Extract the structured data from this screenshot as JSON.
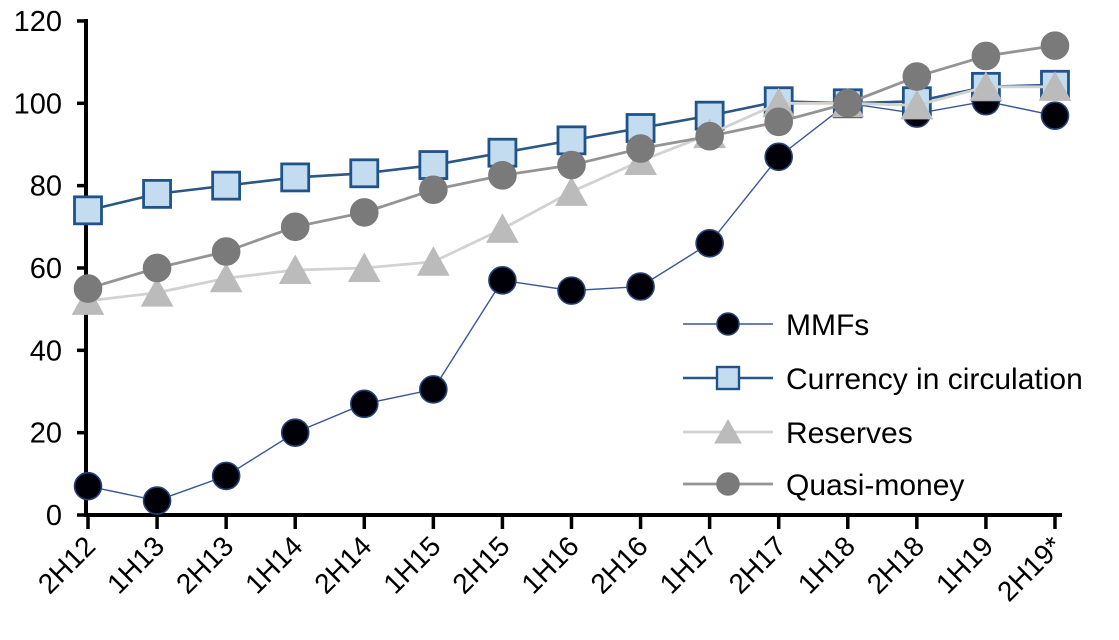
{
  "chart_data": {
    "type": "line",
    "title": "",
    "xlabel": "",
    "ylabel": "",
    "ylim": [
      0,
      120
    ],
    "yticks": [
      0,
      20,
      40,
      60,
      80,
      100,
      120
    ],
    "grid": false,
    "legend_position": "inside-right",
    "categories": [
      "2H12",
      "1H13",
      "2H13",
      "1H14",
      "2H14",
      "1H15",
      "2H15",
      "1H16",
      "2H16",
      "1H17",
      "2H17",
      "1H18",
      "2H18",
      "1H19",
      "2H19*"
    ],
    "series": [
      {
        "name": "MMFs",
        "marker": "circle",
        "marker_fill": "#000008",
        "marker_stroke": "#24427A",
        "line_color": "#3A5795",
        "line_width": 1.4,
        "values": [
          7,
          3.5,
          9.5,
          20,
          27,
          30.5,
          57,
          54.5,
          55.5,
          66,
          87,
          100,
          97.5,
          100.5,
          97
        ]
      },
      {
        "name": "Currency in circulation",
        "marker": "square",
        "marker_fill": "#C3DCF0",
        "marker_stroke": "#1F538A",
        "line_color": "#2A5783",
        "line_width": 2.6,
        "values": [
          74,
          78,
          80,
          82,
          83,
          85,
          88,
          91,
          94,
          97,
          100.5,
          100,
          100.5,
          104,
          104.5
        ]
      },
      {
        "name": "Reserves",
        "marker": "triangle",
        "marker_fill": "#BBBBBB",
        "marker_stroke": "#BBBBBB",
        "line_color": "#D2D2D2",
        "line_width": 2.8,
        "values": [
          52,
          54,
          57.5,
          59.5,
          60,
          61.5,
          69.5,
          78.5,
          86,
          92.5,
          100,
          100,
          99.5,
          104,
          104
        ]
      },
      {
        "name": "Quasi-money",
        "marker": "circle",
        "marker_fill": "#7A7A7A",
        "marker_stroke": "#7A7A7A",
        "line_color": "#949494",
        "line_width": 2.8,
        "values": [
          55,
          60,
          64,
          70,
          73.5,
          79,
          82.5,
          85,
          89,
          92,
          95.5,
          100,
          106.5,
          111.5,
          114
        ]
      }
    ],
    "axis_color": "#000000"
  }
}
